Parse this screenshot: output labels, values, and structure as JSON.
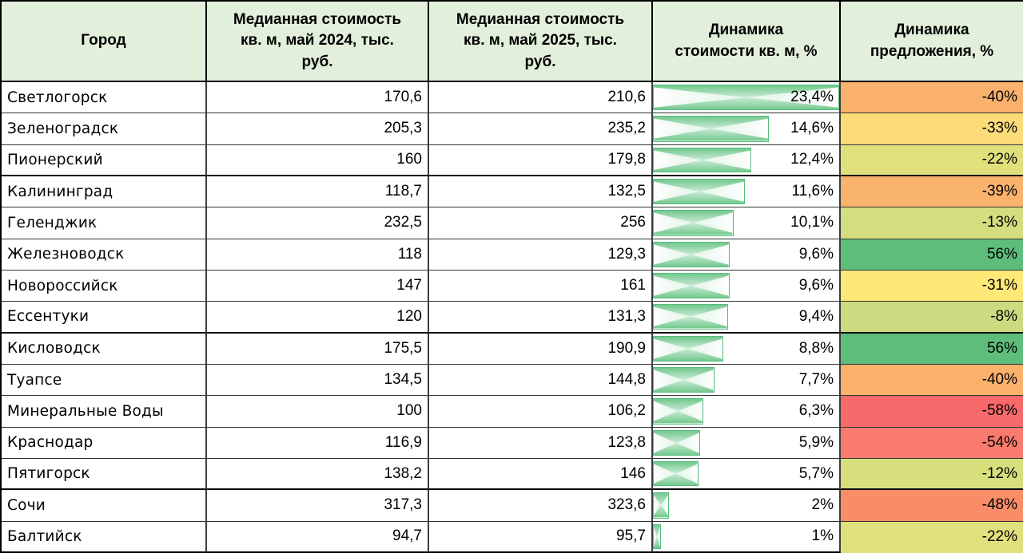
{
  "table": {
    "header": {
      "bg": "#E2EFDA",
      "columns": [
        {
          "id": "city",
          "label": "Город"
        },
        {
          "id": "price_2024",
          "label": "Медианная стоимость\nкв. м, май 2024, тыс.\nруб."
        },
        {
          "id": "price_2025",
          "label": "Медианная стоимость\nкв. м, май 2025, тыс.\nруб."
        },
        {
          "id": "price_dynamics",
          "label": "Динамика\nстоимости кв. м, %"
        },
        {
          "id": "supply_dynamics",
          "label": "Динамика\nпредложения, %"
        }
      ]
    },
    "data_bar": {
      "border_color": "#56BD7E",
      "fill_color": "#74C88E"
    },
    "rows": [
      {
        "city": "Светлогорск",
        "price_2024": "170,6",
        "price_2025": "210,6",
        "price_dynamics": "23,4%",
        "price_dynamics_value": 23.4,
        "supply_dynamics": "-40%",
        "supply_bg": "#F9B16C"
      },
      {
        "city": "Зеленоградск",
        "price_2024": "205,3",
        "price_2025": "235,2",
        "price_dynamics": "14,6%",
        "price_dynamics_value": 14.6,
        "supply_dynamics": "-33%",
        "supply_bg": "#FBDC79"
      },
      {
        "city": "Пионерский",
        "price_2024": "160",
        "price_2025": "179,8",
        "price_dynamics": "12,4%",
        "price_dynamics_value": 12.4,
        "supply_dynamics": "-22%",
        "supply_bg": "#E0E17C"
      },
      {
        "city": "Калининград",
        "price_2024": "118,7",
        "price_2025": "132,5",
        "price_dynamics": "11,6%",
        "price_dynamics_value": 11.6,
        "supply_dynamics": "-39%",
        "supply_bg": "#F9B36D"
      },
      {
        "city": "Геленджик",
        "price_2024": "232,5",
        "price_2025": "256",
        "price_dynamics": "10,1%",
        "price_dynamics_value": 10.1,
        "supply_dynamics": "-13%",
        "supply_bg": "#D5DE7E"
      },
      {
        "city": "Железноводск",
        "price_2024": "118",
        "price_2025": "129,3",
        "price_dynamics": "9,6%",
        "price_dynamics_value": 9.6,
        "supply_dynamics": "56%",
        "supply_bg": "#5EBD7B"
      },
      {
        "city": "Новороссийск",
        "price_2024": "147",
        "price_2025": "161",
        "price_dynamics": "9,6%",
        "price_dynamics_value": 9.6,
        "supply_dynamics": "-31%",
        "supply_bg": "#FDE878"
      },
      {
        "city": "Ессентуки",
        "price_2024": "120",
        "price_2025": "131,3",
        "price_dynamics": "9,4%",
        "price_dynamics_value": 9.4,
        "supply_dynamics": "-8%",
        "supply_bg": "#CCDA80"
      },
      {
        "city": "Кисловодск",
        "price_2024": "175,5",
        "price_2025": "190,9",
        "price_dynamics": "8,8%",
        "price_dynamics_value": 8.8,
        "supply_dynamics": "56%",
        "supply_bg": "#5EBD7B"
      },
      {
        "city": "Туапсе",
        "price_2024": "134,5",
        "price_2025": "144,8",
        "price_dynamics": "7,7%",
        "price_dynamics_value": 7.7,
        "supply_dynamics": "-40%",
        "supply_bg": "#F9B16C"
      },
      {
        "city": "Минеральные Воды",
        "price_2024": "100",
        "price_2025": "106,2",
        "price_dynamics": "6,3%",
        "price_dynamics_value": 6.3,
        "supply_dynamics": "-58%",
        "supply_bg": "#F8696B"
      },
      {
        "city": "Краснодар",
        "price_2024": "116,9",
        "price_2025": "123,8",
        "price_dynamics": "5,9%",
        "price_dynamics_value": 5.9,
        "supply_dynamics": "-54%",
        "supply_bg": "#F87B6D"
      },
      {
        "city": "Пятигорск",
        "price_2024": "138,2",
        "price_2025": "146",
        "price_dynamics": "5,7%",
        "price_dynamics_value": 5.7,
        "supply_dynamics": "-12%",
        "supply_bg": "#D7DF7D"
      },
      {
        "city": "Сочи",
        "price_2024": "317,3",
        "price_2025": "323,6",
        "price_dynamics": "2%",
        "price_dynamics_value": 2,
        "supply_dynamics": "-48%",
        "supply_bg": "#F98D68"
      },
      {
        "city": "Балтийск",
        "price_2024": "94,7",
        "price_2025": "95,7",
        "price_dynamics": "1%",
        "price_dynamics_value": 1,
        "supply_dynamics": "-22%",
        "supply_bg": "#E0E17C"
      }
    ]
  },
  "chart_data": {
    "type": "table",
    "columns": [
      "Город",
      "Медианная стоимость кв. м, май 2024, тыс. руб.",
      "Медианная стоимость кв. м, май 2025, тыс. руб.",
      "Динамика стоимости кв. м, %",
      "Динамика предложения, %"
    ],
    "rows": [
      [
        "Светлогорск",
        170.6,
        210.6,
        23.4,
        -40
      ],
      [
        "Зеленоградск",
        205.3,
        235.2,
        14.6,
        -33
      ],
      [
        "Пионерский",
        160,
        179.8,
        12.4,
        -22
      ],
      [
        "Калининград",
        118.7,
        132.5,
        11.6,
        -39
      ],
      [
        "Геленджик",
        232.5,
        256,
        10.1,
        -13
      ],
      [
        "Железноводск",
        118,
        129.3,
        9.6,
        56
      ],
      [
        "Новороссийск",
        147,
        161,
        9.6,
        -31
      ],
      [
        "Ессентуки",
        120,
        131.3,
        9.4,
        -8
      ],
      [
        "Кисловодск",
        175.5,
        190.9,
        8.8,
        56
      ],
      [
        "Туапсе",
        134.5,
        144.8,
        7.7,
        -40
      ],
      [
        "Минеральные Воды",
        100,
        106.2,
        6.3,
        -58
      ],
      [
        "Краснодар",
        116.9,
        123.8,
        5.9,
        -54
      ],
      [
        "Пятигорск",
        138.2,
        146,
        5.7,
        -12
      ],
      [
        "Сочи",
        317.3,
        323.6,
        2,
        -48
      ],
      [
        "Балтийск",
        94.7,
        95.7,
        1,
        -22
      ]
    ],
    "formatting": {
      "price_dynamics_column": "green gradient data bars scaled from 0 to max value 23.4%",
      "supply_dynamics_column": "3-color scale: red (#F8696B) at -58%, yellow (#FDE878) near -31%, green (#5EBD7B) at 56%"
    },
    "legend_position": "none",
    "grid": true
  }
}
